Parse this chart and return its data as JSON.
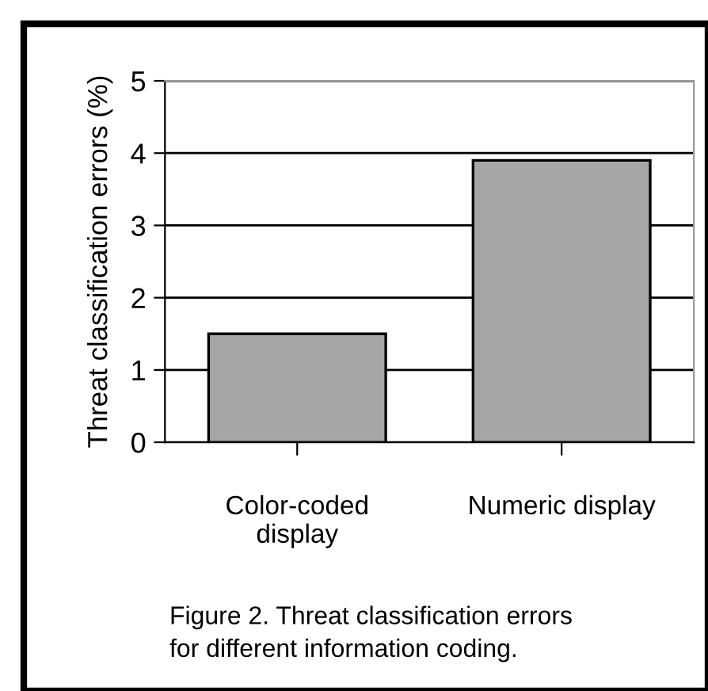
{
  "chart_data": {
    "type": "bar",
    "ylabel": "Threat classification errors (%)",
    "categories": [
      "Color-coded\ndisplay",
      "Numeric display"
    ],
    "values": [
      1.5,
      3.9
    ],
    "color": "#a6a6a6",
    "ylim": [
      0,
      5
    ],
    "yticks": [
      0,
      1,
      2,
      3,
      4,
      5
    ],
    "grid": "y",
    "annotations": [
      "Figure 2. Threat classification errors\nfor different information coding."
    ]
  }
}
